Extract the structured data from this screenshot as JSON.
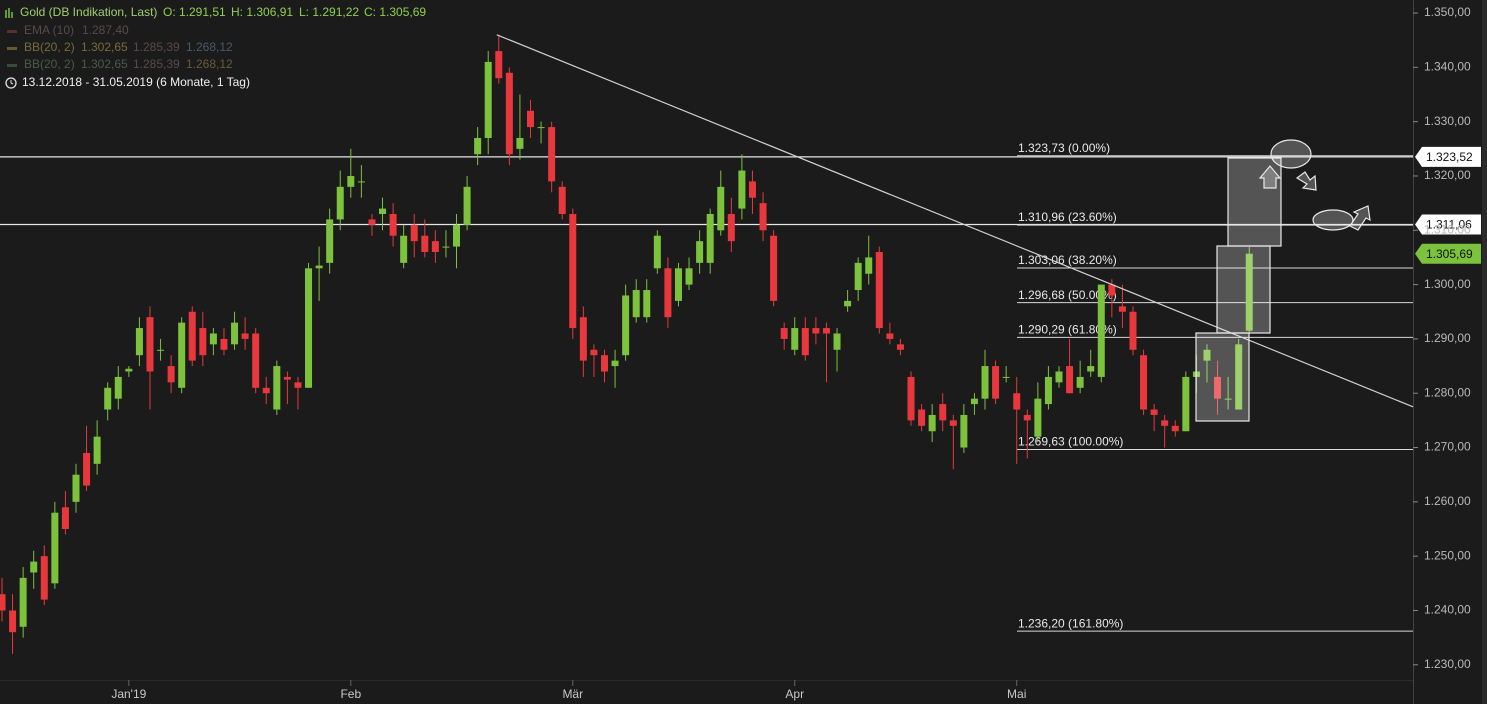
{
  "header": {
    "instrument": "Gold (DB Indikation, Last)",
    "open": "O: 1.291,51",
    "high": "H: 1.306,91",
    "low": "L: 1.291,22",
    "close": "C: 1.305,69",
    "indicators": [
      {
        "name": "EMA (10)",
        "values": [
          "1.287,40"
        ]
      },
      {
        "name": "BB(20, 2)",
        "values": [
          "1.302,65",
          "1.285,39",
          "1.268,12"
        ]
      },
      {
        "name": "BB(20, 2)",
        "values": [
          "1.302,65",
          "1.285,39",
          "1.268,12"
        ]
      }
    ],
    "range": "13.12.2018 - 31.05.2019 (6 Monate, 1 Tag)"
  },
  "chart_data": {
    "type": "candlestick",
    "up_color": "#7dc23c",
    "down_color": "#e8383d",
    "categories": [
      null,
      null,
      null,
      null,
      null,
      null,
      null,
      null,
      null,
      null,
      null,
      null,
      "Jan'19",
      null,
      null,
      null,
      null,
      null,
      null,
      null,
      null,
      null,
      null,
      null,
      null,
      null,
      null,
      null,
      null,
      null,
      null,
      null,
      null,
      "Feb",
      null,
      null,
      null,
      null,
      null,
      null,
      null,
      null,
      null,
      null,
      null,
      null,
      null,
      null,
      null,
      null,
      null,
      null,
      null,
      null,
      "Mär",
      null,
      null,
      null,
      null,
      null,
      null,
      null,
      null,
      null,
      null,
      null,
      null,
      null,
      null,
      null,
      null,
      null,
      null,
      null,
      null,
      "Apr",
      null,
      null,
      null,
      null,
      null,
      null,
      null,
      null,
      null,
      null,
      null,
      null,
      null,
      null,
      null,
      null,
      null,
      null,
      null,
      null,
      "Mai",
      null,
      null,
      null,
      null,
      null,
      null,
      null,
      null,
      null,
      null,
      null,
      null,
      null,
      null,
      null,
      null,
      null,
      null,
      null,
      null,
      null,
      null
    ],
    "open": [
      1243,
      1240,
      1237,
      1247,
      1250,
      1245,
      1259,
      1260,
      1269,
      1267,
      1277,
      1279,
      1284,
      1287,
      1294,
      1288,
      1285,
      1281,
      1295,
      1292,
      1289,
      1290,
      1289,
      1291,
      1291,
      1281,
      1277,
      1283,
      1282,
      1281,
      1303,
      1304,
      1312,
      1318,
      1319,
      1312,
      1313,
      1313,
      1304,
      1311,
      1309,
      1308,
      1307,
      1307,
      1311,
      1324,
      1327,
      1343,
      1339,
      1325,
      1332,
      1329,
      1329,
      1318,
      1313,
      1294,
      1288,
      1287,
      1285,
      1287,
      1294,
      1294,
      1303,
      1303,
      1297,
      1300,
      1304,
      1304,
      1310,
      1313,
      1314,
      1319,
      1315,
      1309,
      1292,
      1288,
      1292,
      1292,
      1292,
      1288,
      1296,
      1299,
      1302,
      1306,
      1291,
      1289,
      1283,
      1277,
      1273,
      1278,
      1275,
      1270,
      1278,
      1279,
      1285,
      1283,
      1280,
      1276,
      1272,
      1278,
      1282,
      1285,
      1281,
      1284,
      1283,
      1300,
      1296,
      1295,
      1287,
      1277,
      1275,
      1274,
      1273,
      1283,
      1286,
      1283,
      1279,
      1277,
      1291.51
    ],
    "high": [
      1246,
      1243,
      1248,
      1251,
      1252,
      1260,
      1262,
      1267,
      1274,
      1275,
      1282,
      1285,
      1285,
      1294,
      1296,
      1290,
      1287,
      1294,
      1296,
      1295,
      1292,
      1292,
      1295,
      1294,
      1292,
      1283,
      1286,
      1284,
      1283,
      1304,
      1307,
      1314,
      1321,
      1325,
      1322,
      1313,
      1316,
      1315,
      1311,
      1313,
      1312,
      1310,
      1310,
      1313,
      1320,
      1329,
      1343,
      1346,
      1340,
      1335,
      1334,
      1330,
      1330,
      1319,
      1314,
      1296,
      1289,
      1288,
      1288,
      1300,
      1301,
      1301,
      1310,
      1305,
      1304,
      1305,
      1310,
      1314,
      1321,
      1316,
      1324,
      1321,
      1317,
      1310,
      1293,
      1294,
      1294,
      1294,
      1293,
      1292,
      1299,
      1305,
      1309,
      1307,
      1293,
      1290,
      1284,
      1278,
      1278,
      1280,
      1276,
      1278,
      1280,
      1288,
      1286,
      1285,
      1283,
      1277,
      1282,
      1285,
      1285,
      1290,
      1286,
      1288,
      1300,
      1301,
      1300,
      1296,
      1288,
      1278,
      1276,
      1275,
      1284,
      1287,
      1289,
      1286,
      1283,
      1290,
      1306.91
    ],
    "low": [
      1238,
      1232,
      1235,
      1244,
      1241,
      1244,
      1254,
      1258,
      1262,
      1265,
      1275,
      1277,
      1283,
      1285,
      1277,
      1286,
      1280,
      1280,
      1285,
      1285,
      1287,
      1287,
      1288,
      1288,
      1280,
      1278,
      1276,
      1278,
      1277,
      1281,
      1297,
      1302,
      1310,
      1316,
      1316,
      1309,
      1310,
      1307,
      1303,
      1305,
      1305,
      1304,
      1305,
      1303,
      1310,
      1322,
      1324,
      1337,
      1322,
      1323,
      1327,
      1326,
      1317,
      1312,
      1290,
      1283,
      1283,
      1282,
      1281,
      1286,
      1293,
      1293,
      1302,
      1292,
      1296,
      1299,
      1302,
      1302,
      1309,
      1306,
      1312,
      1313,
      1308,
      1296,
      1288,
      1287,
      1286,
      1289,
      1282,
      1284,
      1295,
      1297,
      1300,
      1291,
      1289,
      1287,
      1274,
      1273,
      1271,
      1273,
      1266,
      1269,
      1276,
      1277,
      1278,
      1282,
      1267,
      1268,
      1271,
      1277,
      1281,
      1280,
      1280,
      1283,
      1282,
      1294,
      1292,
      1287,
      1276,
      1273,
      1270,
      1272,
      1273,
      1280,
      1282,
      1276,
      1277,
      1277,
      1291.22
    ],
    "close": [
      1240,
      1236,
      1246,
      1249,
      1242,
      1258,
      1255,
      1265,
      1263,
      1272,
      1281,
      1283,
      1284.5,
      1292,
      1284,
      1288,
      1282,
      1293,
      1286,
      1287,
      1291,
      1288,
      1293,
      1290,
      1281,
      1280,
      1285,
      1282.5,
      1281,
      1303,
      1303.5,
      1312,
      1318,
      1320,
      1319,
      1311,
      1314,
      1309,
      1309,
      1308,
      1306,
      1306,
      1307,
      1311,
      1318,
      1327,
      1341,
      1338,
      1324,
      1327,
      1329,
      1329,
      1319,
      1313,
      1292,
      1286,
      1287,
      1284,
      1286,
      1298,
      1299,
      1299,
      1309,
      1294,
      1303,
      1303,
      1308,
      1313,
      1318,
      1308,
      1321,
      1316,
      1310,
      1297,
      1290,
      1292,
      1287,
      1291,
      1291,
      1291,
      1297,
      1304,
      1305,
      1292,
      1290,
      1288,
      1275,
      1274,
      1276,
      1275,
      1274,
      1276,
      1279,
      1285,
      1279,
      1283,
      1277,
      1275,
      1279,
      1283,
      1284,
      1280,
      1283,
      1285,
      1300,
      1298,
      1295,
      1288,
      1277,
      1276,
      1274,
      1273,
      1283,
      1284,
      1288,
      1279,
      1279,
      1289,
      1305.69
    ],
    "ylim": [
      1227.2,
      1352.4
    ],
    "yticks": [
      {
        "value": 1230,
        "label": "1.230,00"
      },
      {
        "value": 1240,
        "label": "1.240,00"
      },
      {
        "value": 1250,
        "label": "1.250,00"
      },
      {
        "value": 1260,
        "label": "1.260,00"
      },
      {
        "value": 1270,
        "label": "1.270,00"
      },
      {
        "value": 1280,
        "label": "1.280,00"
      },
      {
        "value": 1290,
        "label": "1.290,00"
      },
      {
        "value": 1300,
        "label": "1.300,00"
      },
      {
        "value": 1310,
        "label": "1.310,00"
      },
      {
        "value": 1320,
        "label": "1.320,00"
      },
      {
        "value": 1330,
        "label": "1.330,00"
      },
      {
        "value": 1340,
        "label": "1.340,00"
      },
      {
        "value": 1350,
        "label": "1.350,00"
      }
    ],
    "grid": false,
    "fib_levels": [
      {
        "value": 1323.73,
        "label": "1.323,73 (0.00%)"
      },
      {
        "value": 1310.96,
        "label": "1.310,96 (23.60%)"
      },
      {
        "value": 1303.06,
        "label": "1.303,06 (38.20%)"
      },
      {
        "value": 1296.68,
        "label": "1.296,68 (50.00%)"
      },
      {
        "value": 1290.29,
        "label": "1.290,29 (61.80%)"
      },
      {
        "value": 1269.63,
        "label": "1.269,63 (100.00%)"
      },
      {
        "value": 1236.2,
        "label": "1.236,20 (161.80%)"
      }
    ],
    "horizontal_lines": [
      {
        "value": 1323.52,
        "label": "1.323,52"
      },
      {
        "value": 1311.06,
        "label": "1.311,06"
      }
    ],
    "last_price": {
      "value": 1305.69,
      "label": "1.305,69"
    },
    "trendline": [
      1346,
      1277.5
    ]
  }
}
